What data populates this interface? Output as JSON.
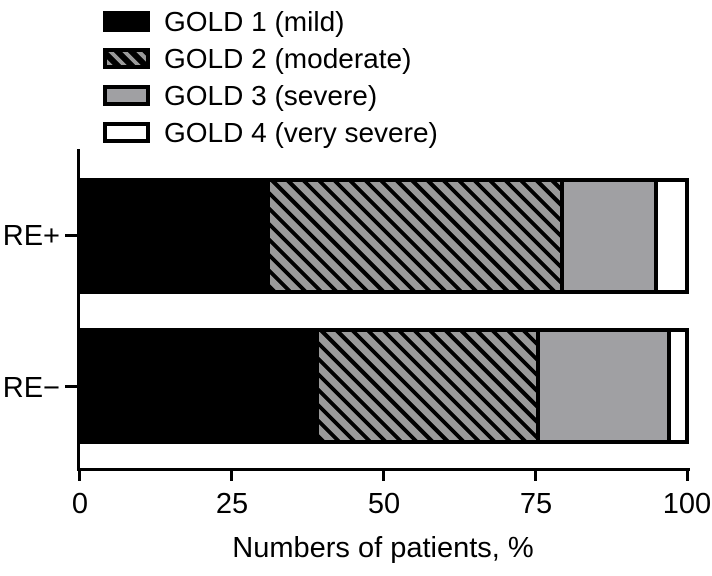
{
  "legend": {
    "items": [
      {
        "label": "GOLD 1 (mild)",
        "swatch": "solid-black",
        "fill": "#000000"
      },
      {
        "label": "GOLD 2 (moderate)",
        "swatch": "diagonal-hatch",
        "fill": "#9a9a9a"
      },
      {
        "label": "GOLD 3 (severe)",
        "swatch": "solid-gray",
        "fill": "#a0a0a3"
      },
      {
        "label": "GOLD 4 (very severe)",
        "swatch": "solid-white",
        "fill": "#ffffff"
      }
    ]
  },
  "chart_data": {
    "type": "bar",
    "orientation": "horizontal",
    "stacked": true,
    "categories": [
      "RE+",
      "RE−"
    ],
    "series": [
      {
        "name": "GOLD 1 (mild)",
        "values": [
          30.6,
          38.7
        ]
      },
      {
        "name": "GOLD 2 (moderate)",
        "values": [
          48.7,
          36.6
        ]
      },
      {
        "name": "GOLD 3 (severe)",
        "values": [
          15.6,
          21.7
        ]
      },
      {
        "name": "GOLD 4 (very severe)",
        "values": [
          5.1,
          3.0
        ]
      }
    ],
    "title": "",
    "xlabel": "Numbers of patients, %",
    "ylabel": "",
    "xlim": [
      0,
      100
    ],
    "xticks": [
      "0",
      "25",
      "50",
      "75",
      "100"
    ],
    "grid": false,
    "legend_position": "top-left",
    "colors": {
      "gold1": "#000000",
      "gold2_hatch": "black-diagonal-on-gray",
      "gold3": "#a0a0a3",
      "gold4": "#ffffff",
      "bar_border": "#000000"
    }
  }
}
